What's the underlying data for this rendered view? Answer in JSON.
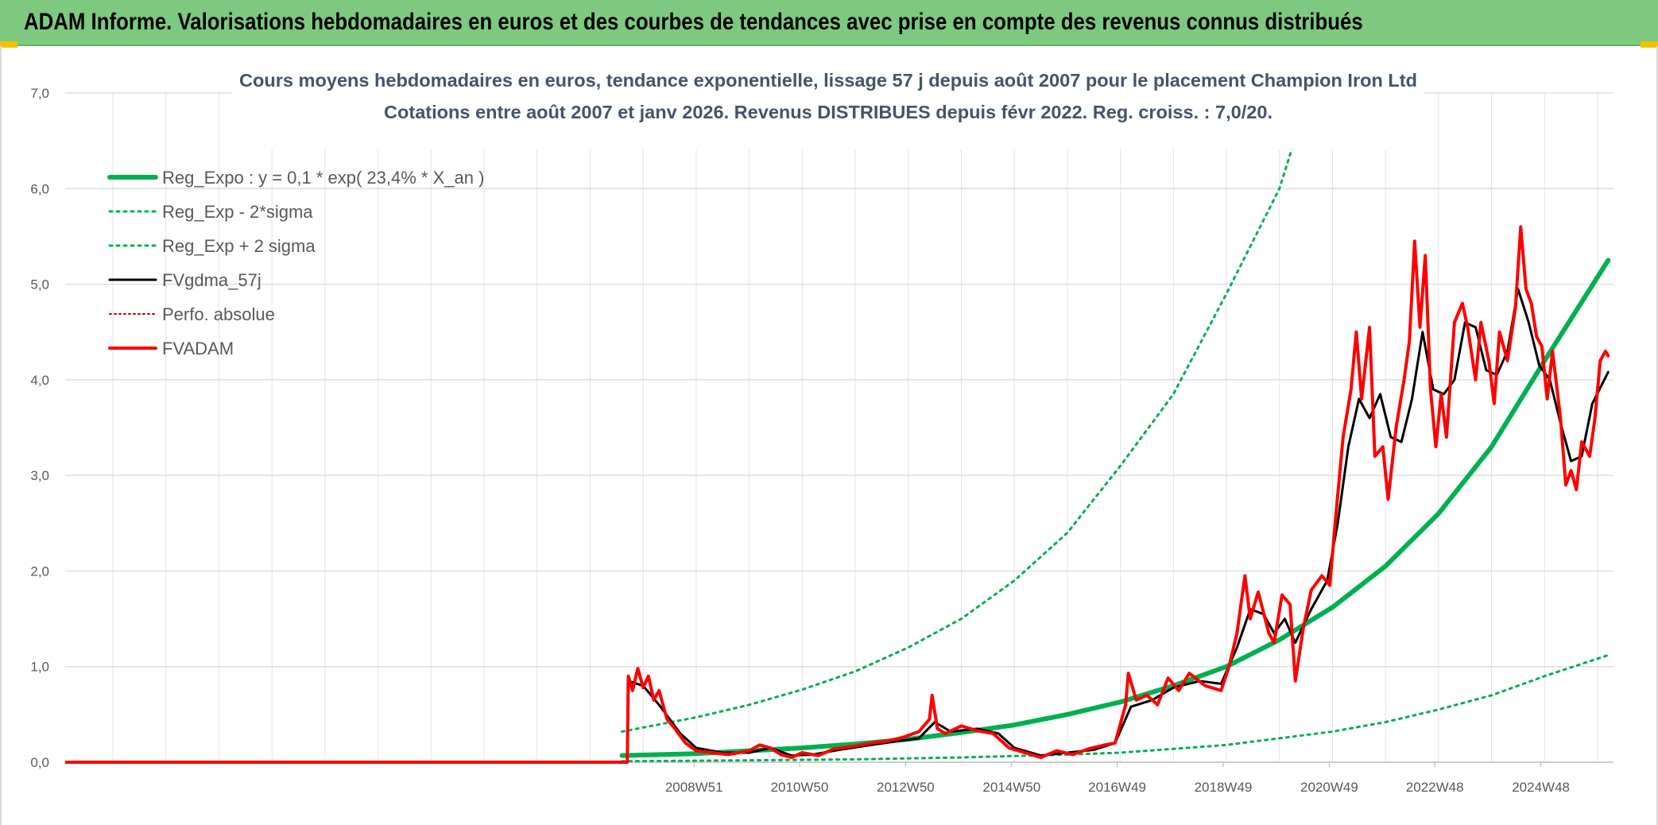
{
  "header": {
    "title": "ADAM Informe. Valorisations hebdomadaires en euros et des courbes de tendances avec prise en compte des revenus connus distribués"
  },
  "chart_data": {
    "type": "line",
    "title": "Cours moyens hebdomadaires en euros, tendance exponentielle, lissage 57 j depuis août 2007 pour le placement Champion Iron Ltd",
    "subtitle": "Cotations entre août 2007 et janv 2026. Revenus DISTRIBUES depuis févr 2022. Reg. croiss. : 7,0/20.",
    "xlabel": "",
    "ylabel": "",
    "ylim": [
      0,
      7
    ],
    "xlim": [
      1997.1,
      2026.3
    ],
    "y_ticks": [
      "0,0",
      "1,0",
      "2,0",
      "3,0",
      "4,0",
      "5,0",
      "6,0",
      "7,0"
    ],
    "x_ticks": [
      {
        "label": "2008W51",
        "x": 2008.96
      },
      {
        "label": "2010W50",
        "x": 2010.95
      },
      {
        "label": "2012W50",
        "x": 2012.95
      },
      {
        "label": "2014W50",
        "x": 2014.95
      },
      {
        "label": "2016W49",
        "x": 2016.94
      },
      {
        "label": "2018W49",
        "x": 2018.94
      },
      {
        "label": "2020W49",
        "x": 2020.94
      },
      {
        "label": "2022W48",
        "x": 2022.93
      },
      {
        "label": "2024W48",
        "x": 2024.93
      }
    ],
    "grid": true,
    "legend_position": "top-left",
    "series": [
      {
        "name": "Reg_Expo : y = 0,1 * exp( 23,4% *  X_an )",
        "color": "#00b050",
        "style": "solid",
        "width": 6,
        "points": [
          [
            2007.6,
            0.07
          ],
          [
            2009,
            0.09
          ],
          [
            2010,
            0.12
          ],
          [
            2011,
            0.15
          ],
          [
            2012,
            0.19
          ],
          [
            2013,
            0.24
          ],
          [
            2014,
            0.31
          ],
          [
            2015,
            0.39
          ],
          [
            2016,
            0.5
          ],
          [
            2017,
            0.63
          ],
          [
            2018,
            0.8
          ],
          [
            2019,
            1.0
          ],
          [
            2020,
            1.28
          ],
          [
            2021,
            1.62
          ],
          [
            2022,
            2.05
          ],
          [
            2023,
            2.6
          ],
          [
            2024,
            3.3
          ],
          [
            2025,
            4.2
          ],
          [
            2026.2,
            5.25
          ]
        ]
      },
      {
        "name": "Reg_Exp - 2*sigma",
        "color": "#00b050",
        "style": "dotted",
        "width": 3,
        "points": [
          [
            2007.6,
            0.01
          ],
          [
            2010,
            0.02
          ],
          [
            2012,
            0.03
          ],
          [
            2014,
            0.05
          ],
          [
            2016,
            0.08
          ],
          [
            2017,
            0.1
          ],
          [
            2018,
            0.14
          ],
          [
            2019,
            0.18
          ],
          [
            2020,
            0.25
          ],
          [
            2021,
            0.32
          ],
          [
            2022,
            0.42
          ],
          [
            2023,
            0.55
          ],
          [
            2024,
            0.7
          ],
          [
            2025,
            0.9
          ],
          [
            2026.2,
            1.12
          ]
        ]
      },
      {
        "name": "Reg_Exp + 2 sigma",
        "color": "#00b050",
        "style": "dotted",
        "width": 3,
        "points": [
          [
            2007.6,
            0.32
          ],
          [
            2009,
            0.47
          ],
          [
            2010,
            0.6
          ],
          [
            2011,
            0.76
          ],
          [
            2012,
            0.95
          ],
          [
            2013,
            1.2
          ],
          [
            2014,
            1.5
          ],
          [
            2015,
            1.9
          ],
          [
            2016,
            2.4
          ],
          [
            2017,
            3.1
          ],
          [
            2018,
            3.85
          ],
          [
            2019,
            4.9
          ],
          [
            2020,
            6.0
          ],
          [
            2020.35,
            6.62
          ]
        ]
      },
      {
        "name": "FVgdma_57j",
        "color": "#000000",
        "style": "solid",
        "width": 3,
        "points": [
          [
            1997.1,
            0
          ],
          [
            2007.7,
            0
          ],
          [
            2007.72,
            0.85
          ],
          [
            2008.0,
            0.8
          ],
          [
            2008.3,
            0.6
          ],
          [
            2008.7,
            0.3
          ],
          [
            2009.0,
            0.15
          ],
          [
            2009.5,
            0.1
          ],
          [
            2010.0,
            0.1
          ],
          [
            2010.4,
            0.15
          ],
          [
            2010.8,
            0.07
          ],
          [
            2011.2,
            0.08
          ],
          [
            2011.7,
            0.13
          ],
          [
            2012.3,
            0.18
          ],
          [
            2012.8,
            0.22
          ],
          [
            2013.2,
            0.25
          ],
          [
            2013.5,
            0.42
          ],
          [
            2013.8,
            0.32
          ],
          [
            2014.3,
            0.35
          ],
          [
            2014.7,
            0.3
          ],
          [
            2015.0,
            0.15
          ],
          [
            2015.5,
            0.07
          ],
          [
            2016.0,
            0.1
          ],
          [
            2016.5,
            0.13
          ],
          [
            2016.9,
            0.2
          ],
          [
            2017.2,
            0.58
          ],
          [
            2017.6,
            0.65
          ],
          [
            2018.0,
            0.78
          ],
          [
            2018.5,
            0.85
          ],
          [
            2018.9,
            0.82
          ],
          [
            2019.2,
            1.2
          ],
          [
            2019.45,
            1.6
          ],
          [
            2019.7,
            1.55
          ],
          [
            2019.9,
            1.35
          ],
          [
            2020.1,
            1.5
          ],
          [
            2020.3,
            1.25
          ],
          [
            2020.6,
            1.6
          ],
          [
            2020.9,
            1.9
          ],
          [
            2021.1,
            2.5
          ],
          [
            2021.3,
            3.3
          ],
          [
            2021.5,
            3.8
          ],
          [
            2021.7,
            3.6
          ],
          [
            2021.9,
            3.85
          ],
          [
            2022.1,
            3.4
          ],
          [
            2022.3,
            3.35
          ],
          [
            2022.5,
            3.8
          ],
          [
            2022.7,
            4.5
          ],
          [
            2022.9,
            3.9
          ],
          [
            2023.1,
            3.85
          ],
          [
            2023.3,
            4.0
          ],
          [
            2023.5,
            4.6
          ],
          [
            2023.7,
            4.55
          ],
          [
            2023.9,
            4.1
          ],
          [
            2024.1,
            4.05
          ],
          [
            2024.3,
            4.3
          ],
          [
            2024.5,
            4.95
          ],
          [
            2024.7,
            4.6
          ],
          [
            2024.9,
            4.15
          ],
          [
            2025.1,
            4.0
          ],
          [
            2025.3,
            3.55
          ],
          [
            2025.5,
            3.15
          ],
          [
            2025.7,
            3.2
          ],
          [
            2025.9,
            3.75
          ],
          [
            2026.2,
            4.08
          ]
        ]
      },
      {
        "name": "Perfo. absolue",
        "color": "#c00000",
        "style": "dotted",
        "width": 2,
        "points": []
      },
      {
        "name": "FVADAM",
        "color": "#ff0000",
        "style": "solid",
        "width": 4,
        "points": [
          [
            1997.1,
            0
          ],
          [
            2007.7,
            0
          ],
          [
            2007.72,
            0.9
          ],
          [
            2007.8,
            0.75
          ],
          [
            2007.9,
            0.98
          ],
          [
            2008.0,
            0.78
          ],
          [
            2008.1,
            0.9
          ],
          [
            2008.2,
            0.65
          ],
          [
            2008.3,
            0.75
          ],
          [
            2008.45,
            0.45
          ],
          [
            2008.6,
            0.35
          ],
          [
            2008.8,
            0.2
          ],
          [
            2009.0,
            0.12
          ],
          [
            2009.3,
            0.1
          ],
          [
            2009.6,
            0.08
          ],
          [
            2010.0,
            0.12
          ],
          [
            2010.2,
            0.18
          ],
          [
            2010.4,
            0.15
          ],
          [
            2010.6,
            0.08
          ],
          [
            2010.8,
            0.05
          ],
          [
            2011.0,
            0.1
          ],
          [
            2011.3,
            0.07
          ],
          [
            2011.6,
            0.14
          ],
          [
            2012.0,
            0.17
          ],
          [
            2012.3,
            0.2
          ],
          [
            2012.6,
            0.22
          ],
          [
            2012.9,
            0.26
          ],
          [
            2013.2,
            0.32
          ],
          [
            2013.4,
            0.45
          ],
          [
            2013.45,
            0.7
          ],
          [
            2013.55,
            0.35
          ],
          [
            2013.7,
            0.3
          ],
          [
            2014.0,
            0.38
          ],
          [
            2014.3,
            0.33
          ],
          [
            2014.6,
            0.3
          ],
          [
            2014.9,
            0.15
          ],
          [
            2015.2,
            0.1
          ],
          [
            2015.5,
            0.05
          ],
          [
            2015.8,
            0.12
          ],
          [
            2016.1,
            0.08
          ],
          [
            2016.4,
            0.14
          ],
          [
            2016.7,
            0.18
          ],
          [
            2016.9,
            0.2
          ],
          [
            2017.1,
            0.6
          ],
          [
            2017.15,
            0.93
          ],
          [
            2017.3,
            0.65
          ],
          [
            2017.5,
            0.7
          ],
          [
            2017.7,
            0.6
          ],
          [
            2017.9,
            0.88
          ],
          [
            2018.1,
            0.75
          ],
          [
            2018.3,
            0.93
          ],
          [
            2018.6,
            0.8
          ],
          [
            2018.9,
            0.75
          ],
          [
            2019.05,
            1.0
          ],
          [
            2019.2,
            1.35
          ],
          [
            2019.35,
            1.95
          ],
          [
            2019.45,
            1.5
          ],
          [
            2019.6,
            1.78
          ],
          [
            2019.8,
            1.35
          ],
          [
            2019.9,
            1.25
          ],
          [
            2020.05,
            1.75
          ],
          [
            2020.2,
            1.65
          ],
          [
            2020.3,
            0.85
          ],
          [
            2020.45,
            1.4
          ],
          [
            2020.6,
            1.8
          ],
          [
            2020.8,
            1.95
          ],
          [
            2020.95,
            1.85
          ],
          [
            2021.05,
            2.5
          ],
          [
            2021.2,
            3.4
          ],
          [
            2021.35,
            3.9
          ],
          [
            2021.45,
            4.5
          ],
          [
            2021.55,
            3.8
          ],
          [
            2021.7,
            4.55
          ],
          [
            2021.8,
            3.2
          ],
          [
            2021.95,
            3.3
          ],
          [
            2022.05,
            2.75
          ],
          [
            2022.2,
            3.5
          ],
          [
            2022.35,
            4.0
          ],
          [
            2022.45,
            4.4
          ],
          [
            2022.55,
            5.45
          ],
          [
            2022.65,
            4.55
          ],
          [
            2022.75,
            5.3
          ],
          [
            2022.85,
            3.9
          ],
          [
            2022.95,
            3.3
          ],
          [
            2023.05,
            3.85
          ],
          [
            2023.15,
            3.4
          ],
          [
            2023.3,
            4.6
          ],
          [
            2023.45,
            4.8
          ],
          [
            2023.55,
            4.55
          ],
          [
            2023.7,
            4.0
          ],
          [
            2023.8,
            4.6
          ],
          [
            2023.95,
            4.2
          ],
          [
            2024.05,
            3.75
          ],
          [
            2024.15,
            4.5
          ],
          [
            2024.3,
            4.2
          ],
          [
            2024.45,
            4.75
          ],
          [
            2024.55,
            5.6
          ],
          [
            2024.65,
            4.95
          ],
          [
            2024.75,
            4.8
          ],
          [
            2024.85,
            4.45
          ],
          [
            2024.95,
            4.35
          ],
          [
            2025.05,
            3.8
          ],
          [
            2025.15,
            4.3
          ],
          [
            2025.3,
            3.6
          ],
          [
            2025.4,
            2.9
          ],
          [
            2025.5,
            3.05
          ],
          [
            2025.6,
            2.85
          ],
          [
            2025.7,
            3.35
          ],
          [
            2025.85,
            3.2
          ],
          [
            2025.95,
            3.6
          ],
          [
            2026.05,
            4.2
          ],
          [
            2026.15,
            4.3
          ],
          [
            2026.2,
            4.25
          ]
        ]
      }
    ]
  }
}
